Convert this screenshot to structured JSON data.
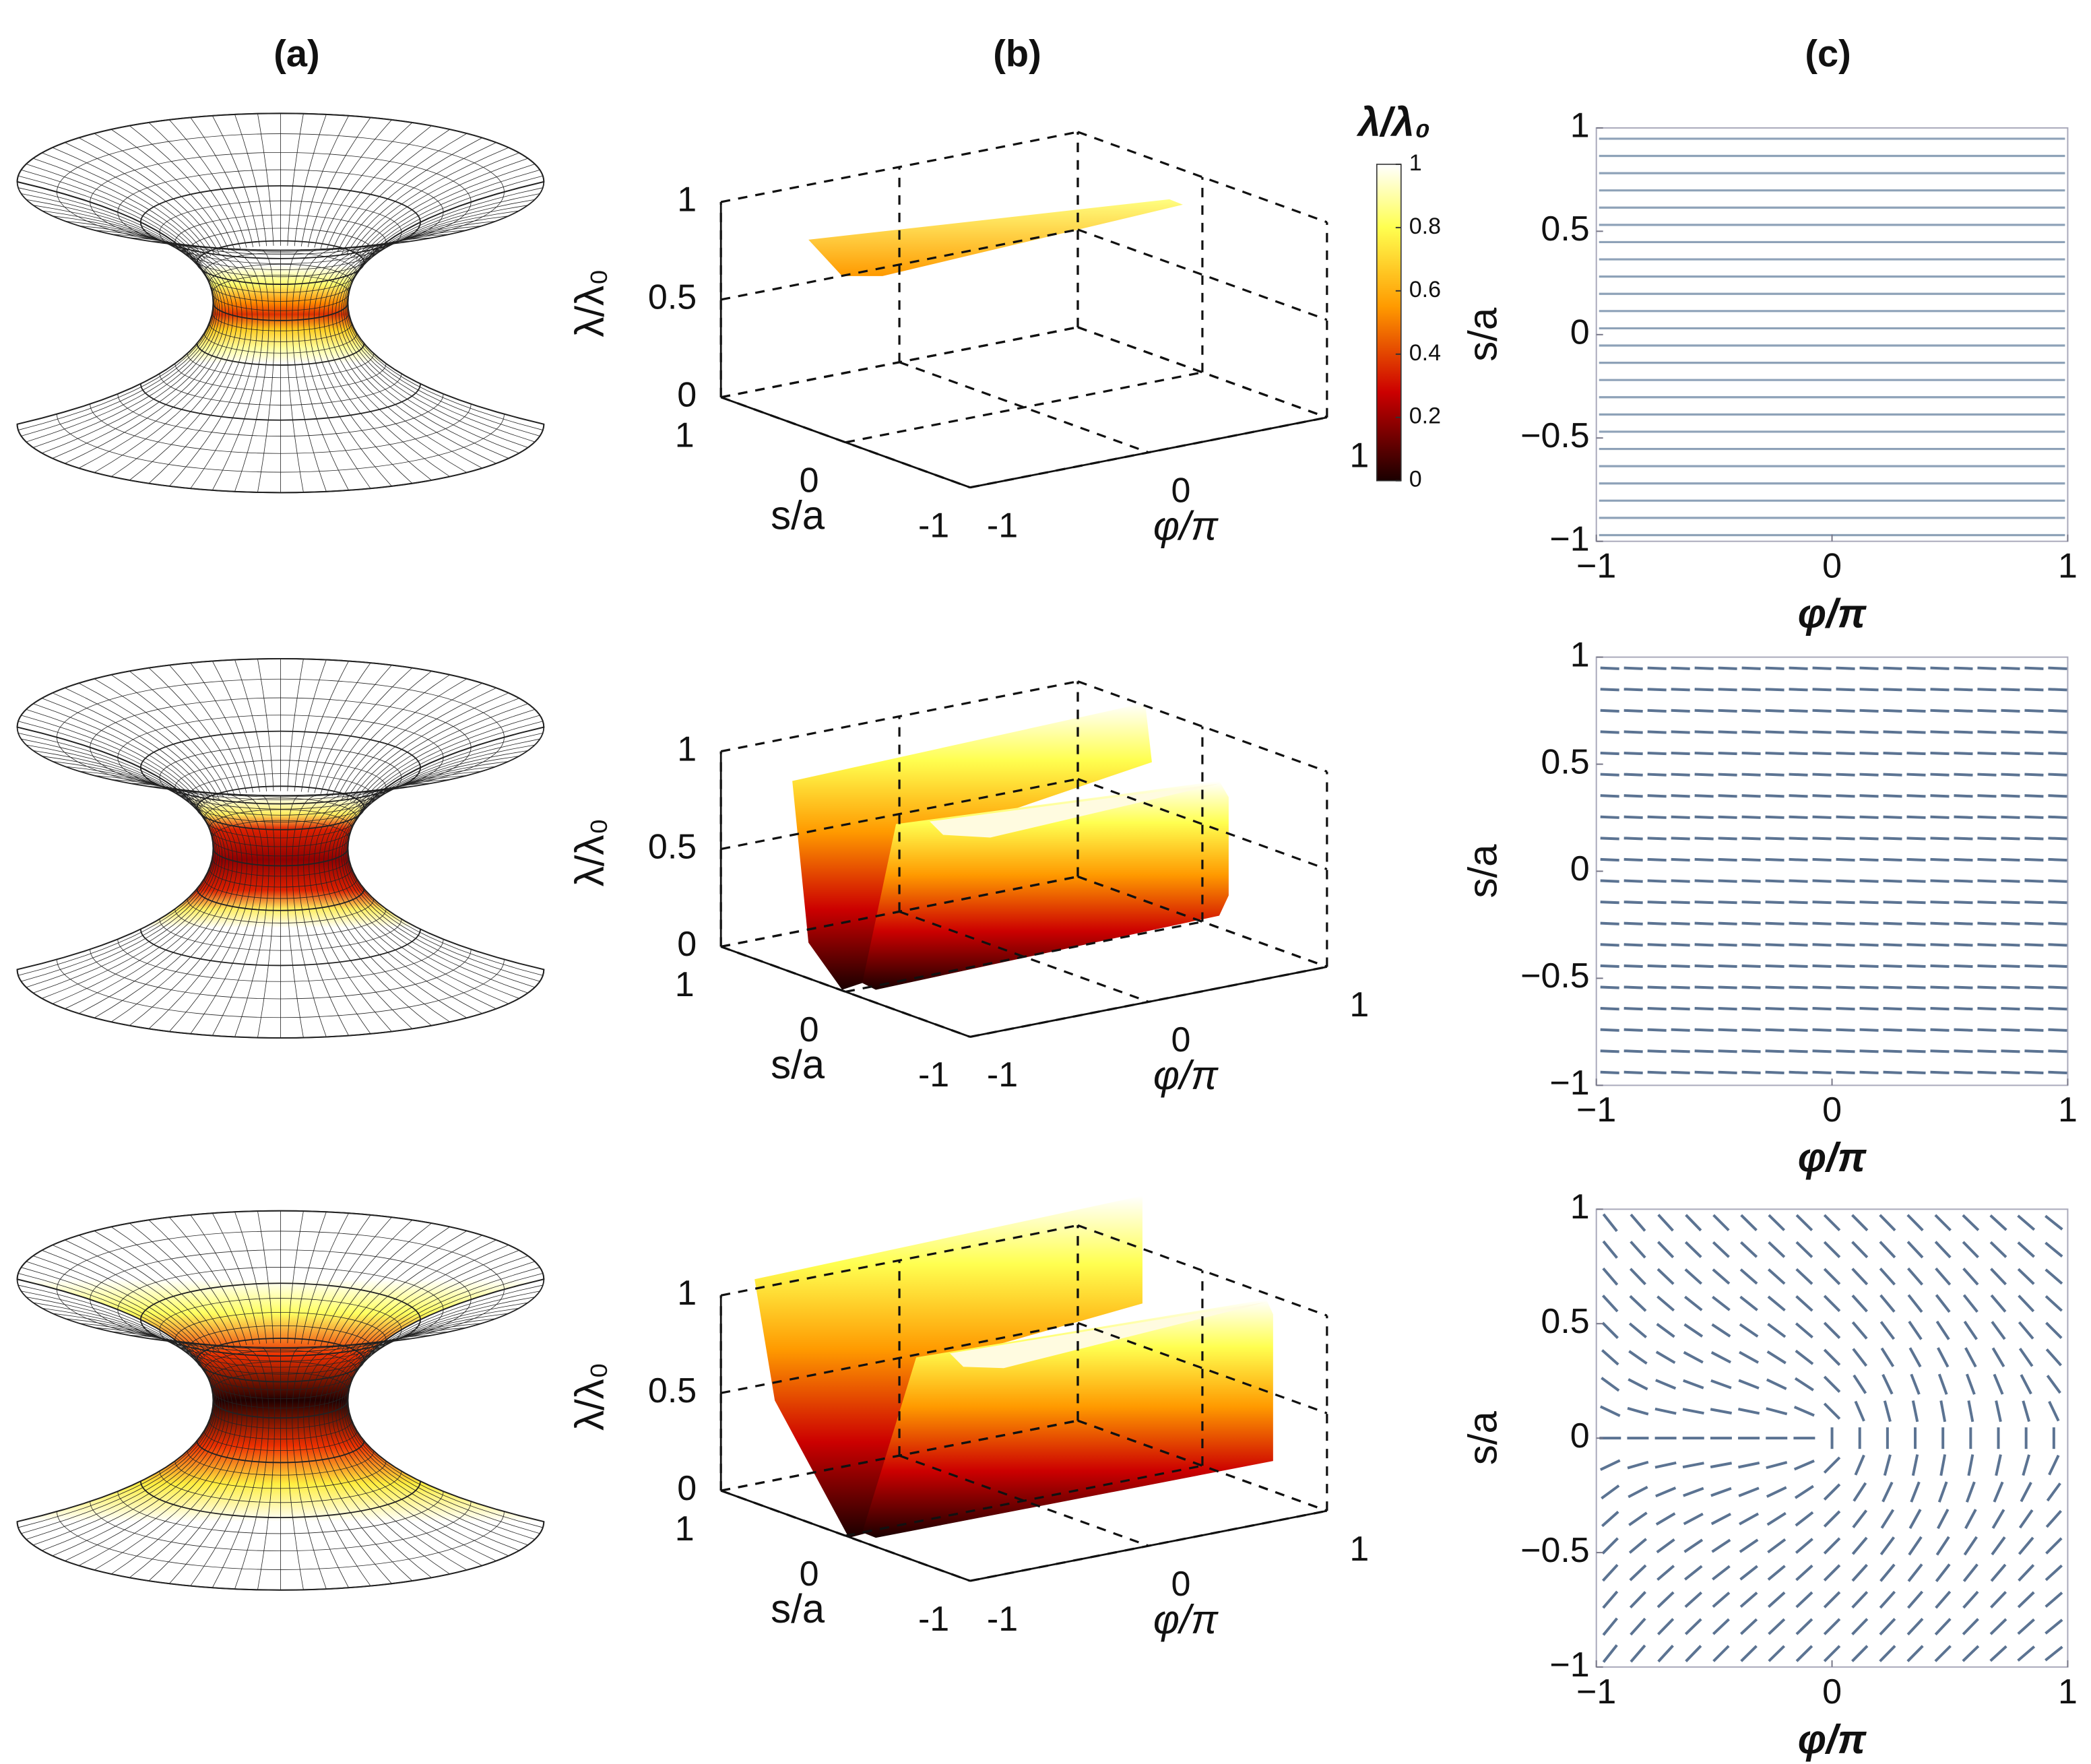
{
  "panel_labels": [
    "(a)",
    "(b)",
    "(c)"
  ],
  "surface_plot": {
    "type": "surface",
    "zlabel": "λ/λ₀",
    "xlabel": "φ/π",
    "ylabel": "s/a",
    "zlim": [
      0,
      1
    ],
    "zticks": [
      0,
      0.5,
      1
    ],
    "xlim": [
      -1,
      1
    ],
    "xticks": [
      -1,
      0,
      1
    ],
    "ylim": [
      -1,
      1
    ],
    "yticks": [
      -1,
      0,
      1
    ]
  },
  "colorbar": {
    "label": "λ/λ₀",
    "lim": [
      0,
      1
    ],
    "ticks": [
      0,
      0.2,
      0.4,
      0.6,
      0.8,
      1
    ]
  },
  "field_plot": {
    "type": "quiver",
    "xlabel": "φ/π",
    "ylabel": "s/a",
    "xlim": [
      -1,
      1
    ],
    "ylim": [
      -1,
      1
    ],
    "xticks": [
      {
        "value": -1,
        "label": "−1"
      },
      0,
      1
    ],
    "yticks": [
      {
        "value": -1,
        "label": "−1"
      },
      {
        "value": -0.5,
        "label": "−0.5"
      },
      0,
      0.5,
      1
    ]
  }
}
